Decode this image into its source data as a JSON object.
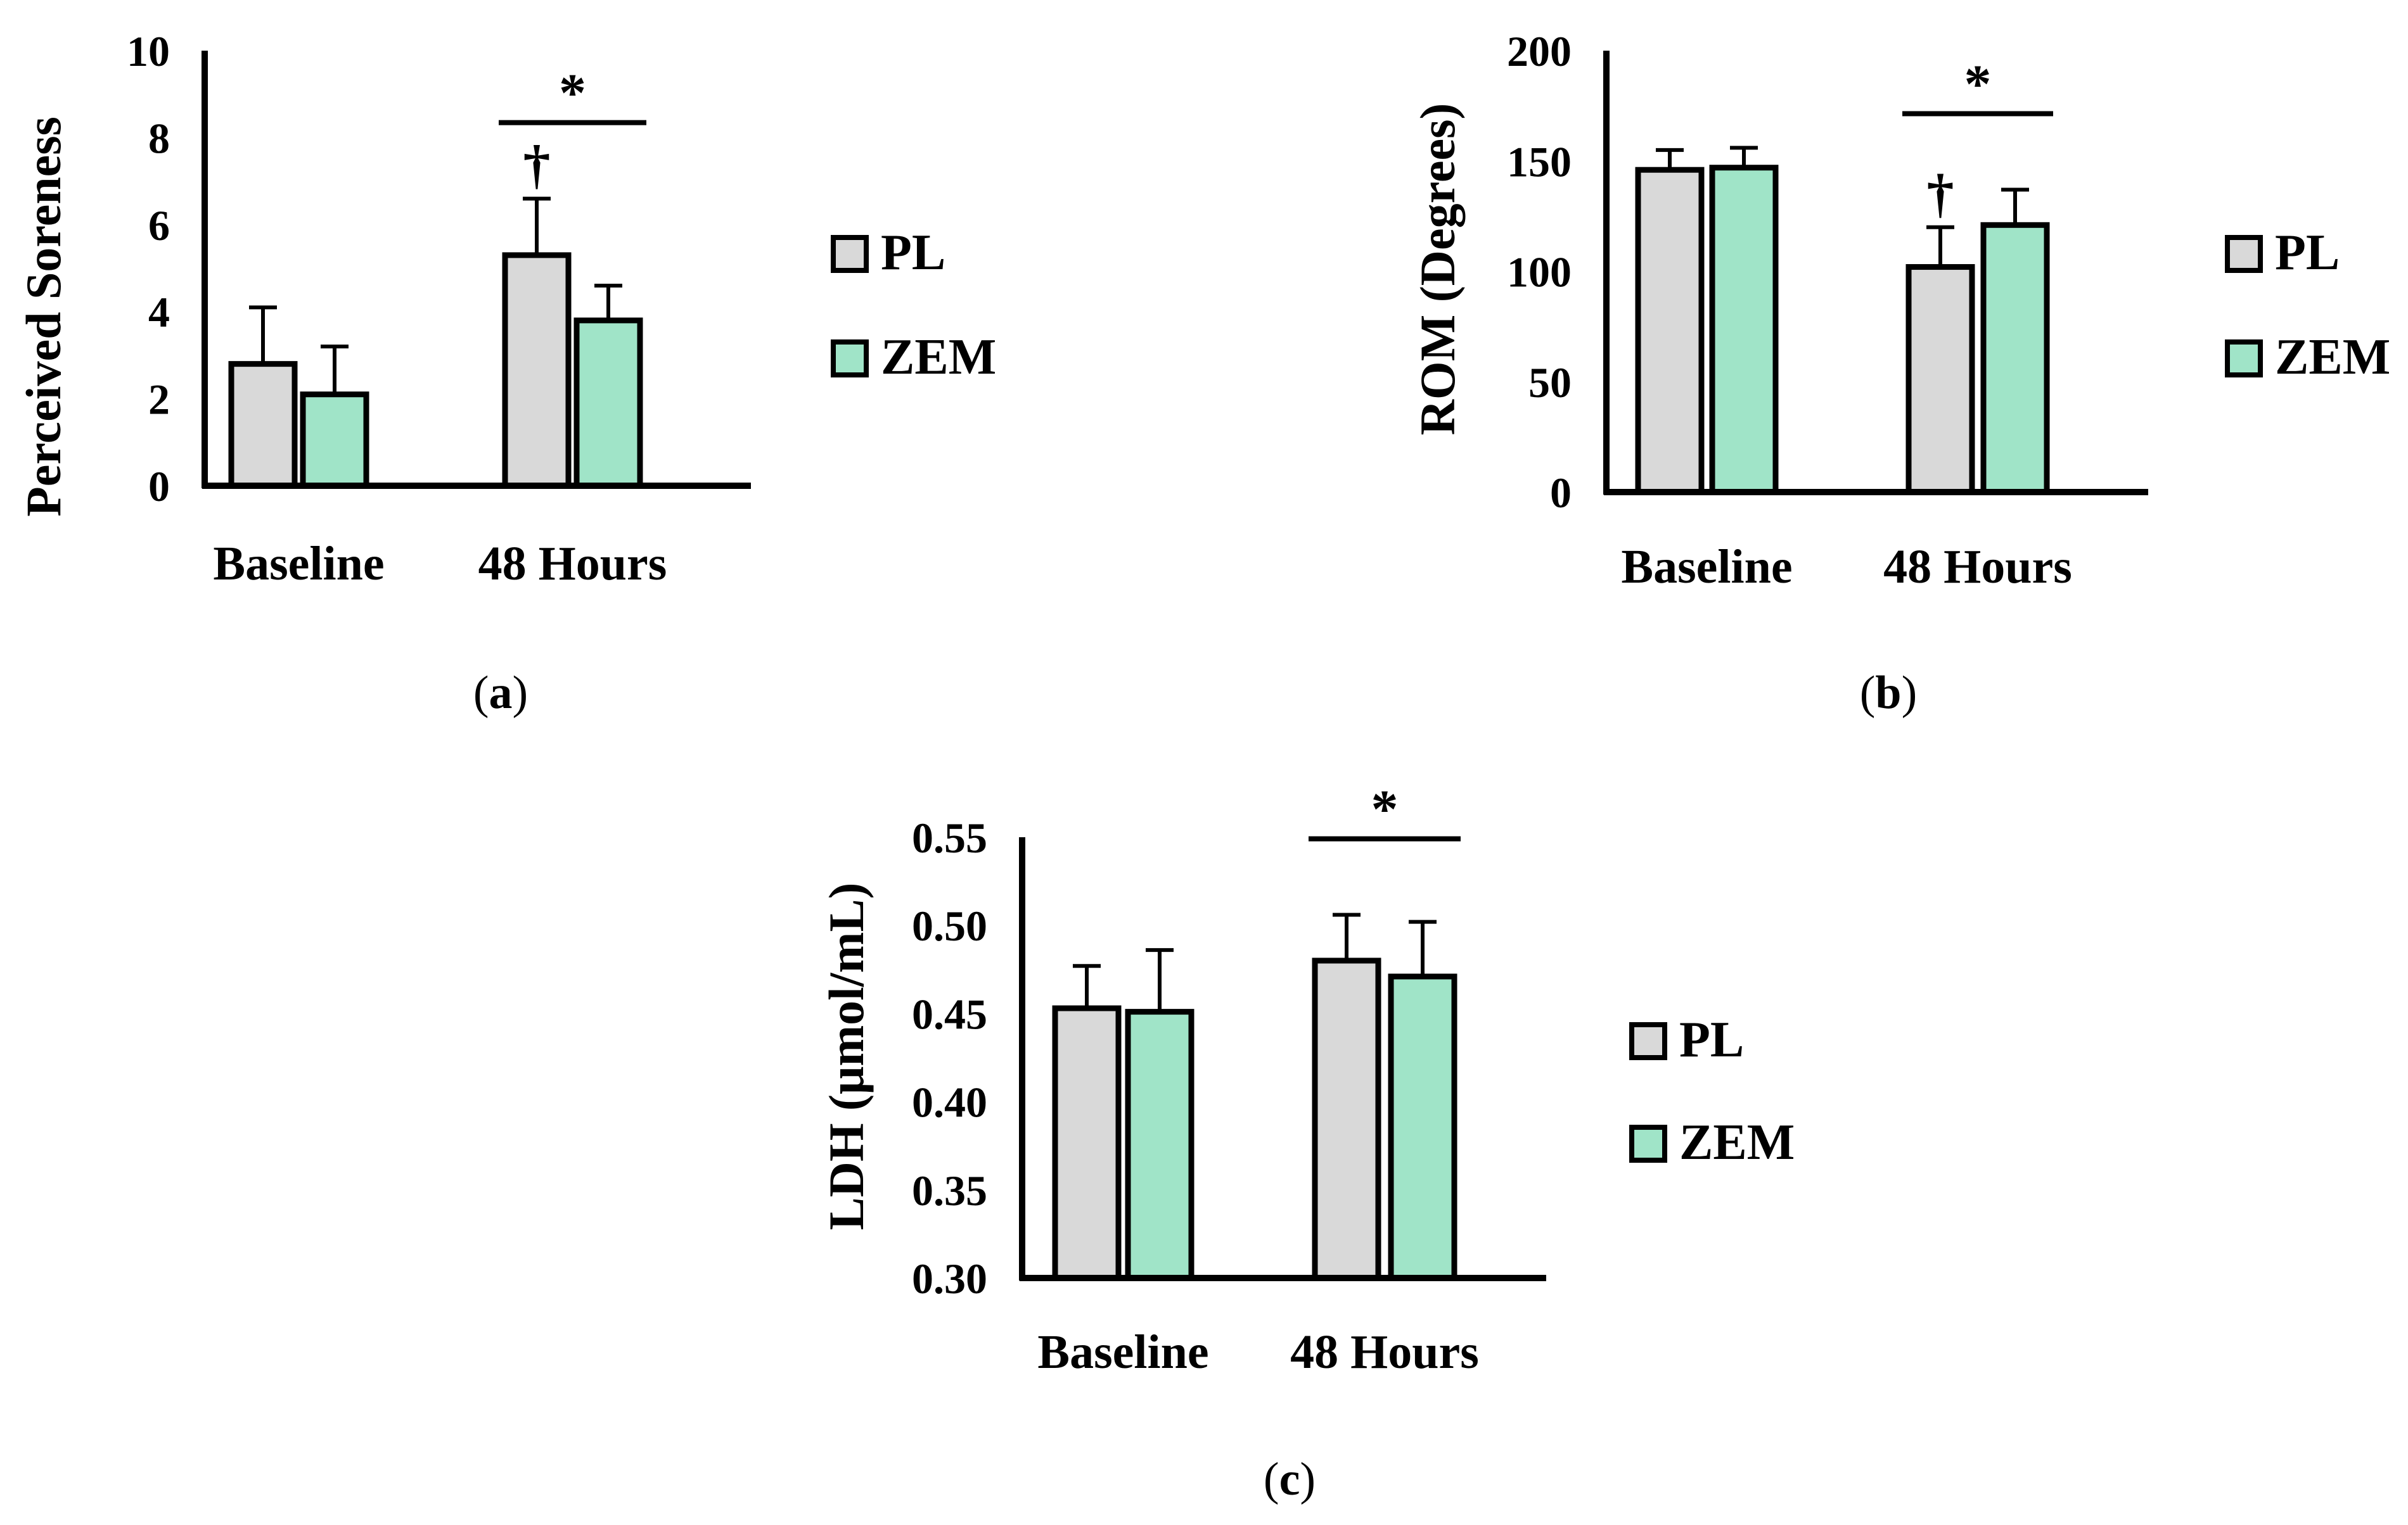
{
  "legend": [
    {
      "label": "PL",
      "color": "#d9d9d9"
    },
    {
      "label": "ZEM",
      "color": "#a0e4c8"
    }
  ],
  "chart_data": [
    {
      "type": "bar",
      "panel_label": "a",
      "ylabel": "Perceived Soreness",
      "xlabel": "",
      "categories": [
        "Baseline",
        "48 Hours"
      ],
      "ylim": [
        0,
        10
      ],
      "yticks": [
        "0",
        "2",
        "4",
        "6",
        "8",
        "10"
      ],
      "series": [
        {
          "name": "PL",
          "values": [
            2.8,
            5.3
          ],
          "errors": [
            1.3,
            1.3
          ]
        },
        {
          "name": "ZEM",
          "values": [
            2.1,
            3.8
          ],
          "errors": [
            1.1,
            0.8
          ]
        }
      ],
      "annotations": [
        {
          "text": "*",
          "category": "48 Hours",
          "type": "bracket"
        },
        {
          "text": "†",
          "category": "48 Hours",
          "series": "PL"
        }
      ]
    },
    {
      "type": "bar",
      "panel_label": "b",
      "ylabel": "ROM (Degrees)",
      "xlabel": "",
      "categories": [
        "Baseline",
        "48 Hours"
      ],
      "ylim": [
        0,
        200
      ],
      "yticks": [
        "0",
        "50",
        "100",
        "150",
        "200"
      ],
      "series": [
        {
          "name": "PL",
          "values": [
            146,
            102
          ],
          "errors": [
            9,
            18
          ]
        },
        {
          "name": "ZEM",
          "values": [
            147,
            121
          ],
          "errors": [
            9,
            16
          ]
        }
      ],
      "annotations": [
        {
          "text": "*",
          "category": "48 Hours",
          "type": "bracket"
        },
        {
          "text": "†",
          "category": "48 Hours",
          "series": "PL"
        }
      ]
    },
    {
      "type": "bar",
      "panel_label": "c",
      "ylabel": "LDH (μmol/mL)",
      "xlabel": "",
      "categories": [
        "Baseline",
        "48 Hours"
      ],
      "ylim": [
        0.3,
        0.55
      ],
      "yticks": [
        "0.30",
        "0.35",
        "0.40",
        "0.45",
        "0.50",
        "0.55"
      ],
      "series": [
        {
          "name": "PL",
          "values": [
            0.453,
            0.48
          ],
          "errors": [
            0.024,
            0.026
          ]
        },
        {
          "name": "ZEM",
          "values": [
            0.451,
            0.471
          ],
          "errors": [
            0.035,
            0.031
          ]
        }
      ],
      "annotations": [
        {
          "text": "*",
          "category": "48 Hours",
          "type": "bracket"
        }
      ]
    }
  ]
}
